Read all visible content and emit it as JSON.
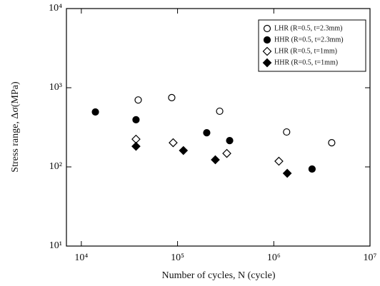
{
  "chart_data": {
    "type": "scatter",
    "xlabel": "Number of cycles, N (cycle)",
    "ylabel": "Stress range, Δσ(MPa)",
    "xscale": "log",
    "yscale": "log",
    "xlim": [
      7000,
      10000000
    ],
    "ylim": [
      10,
      10000
    ],
    "xticks": [
      {
        "value": 10000,
        "label": "10⁴"
      },
      {
        "value": 100000,
        "label": "10⁵"
      },
      {
        "value": 1000000,
        "label": "10⁶"
      },
      {
        "value": 10000000,
        "label": "10⁷"
      }
    ],
    "yticks": [
      {
        "value": 10,
        "label": "10¹"
      },
      {
        "value": 100,
        "label": "10²"
      },
      {
        "value": 1000,
        "label": "10³"
      },
      {
        "value": 10000,
        "label": "10⁴"
      }
    ],
    "grid": false,
    "legend": "upper right",
    "series": [
      {
        "name": "LHR (R=0.5, t=2.3mm)",
        "color": "#000000",
        "marker": "circle",
        "filled": false,
        "x": [
          39000,
          87000,
          274000,
          1360000,
          4000000
        ],
        "values": [
          700,
          750,
          505,
          276,
          202
        ]
      },
      {
        "name": "HHR (R=0.5, t=2.3mm)",
        "color": "#000000",
        "marker": "circle",
        "filled": true,
        "x": [
          14000,
          37000,
          201000,
          348000,
          2500000
        ],
        "values": [
          494,
          394,
          270,
          215,
          94
        ]
      },
      {
        "name": "LHR (R=0.5, t=1mm)",
        "color": "#000000",
        "marker": "diamond",
        "filled": false,
        "x": [
          37000,
          90000,
          325000,
          1130000
        ],
        "values": [
          224,
          202,
          148,
          118
        ]
      },
      {
        "name": "HHR (R=0.5, t=1mm)",
        "color": "#000000",
        "marker": "diamond",
        "filled": true,
        "x": [
          37000,
          115000,
          247000,
          1380000
        ],
        "values": [
          182,
          161,
          123,
          83
        ]
      }
    ]
  }
}
